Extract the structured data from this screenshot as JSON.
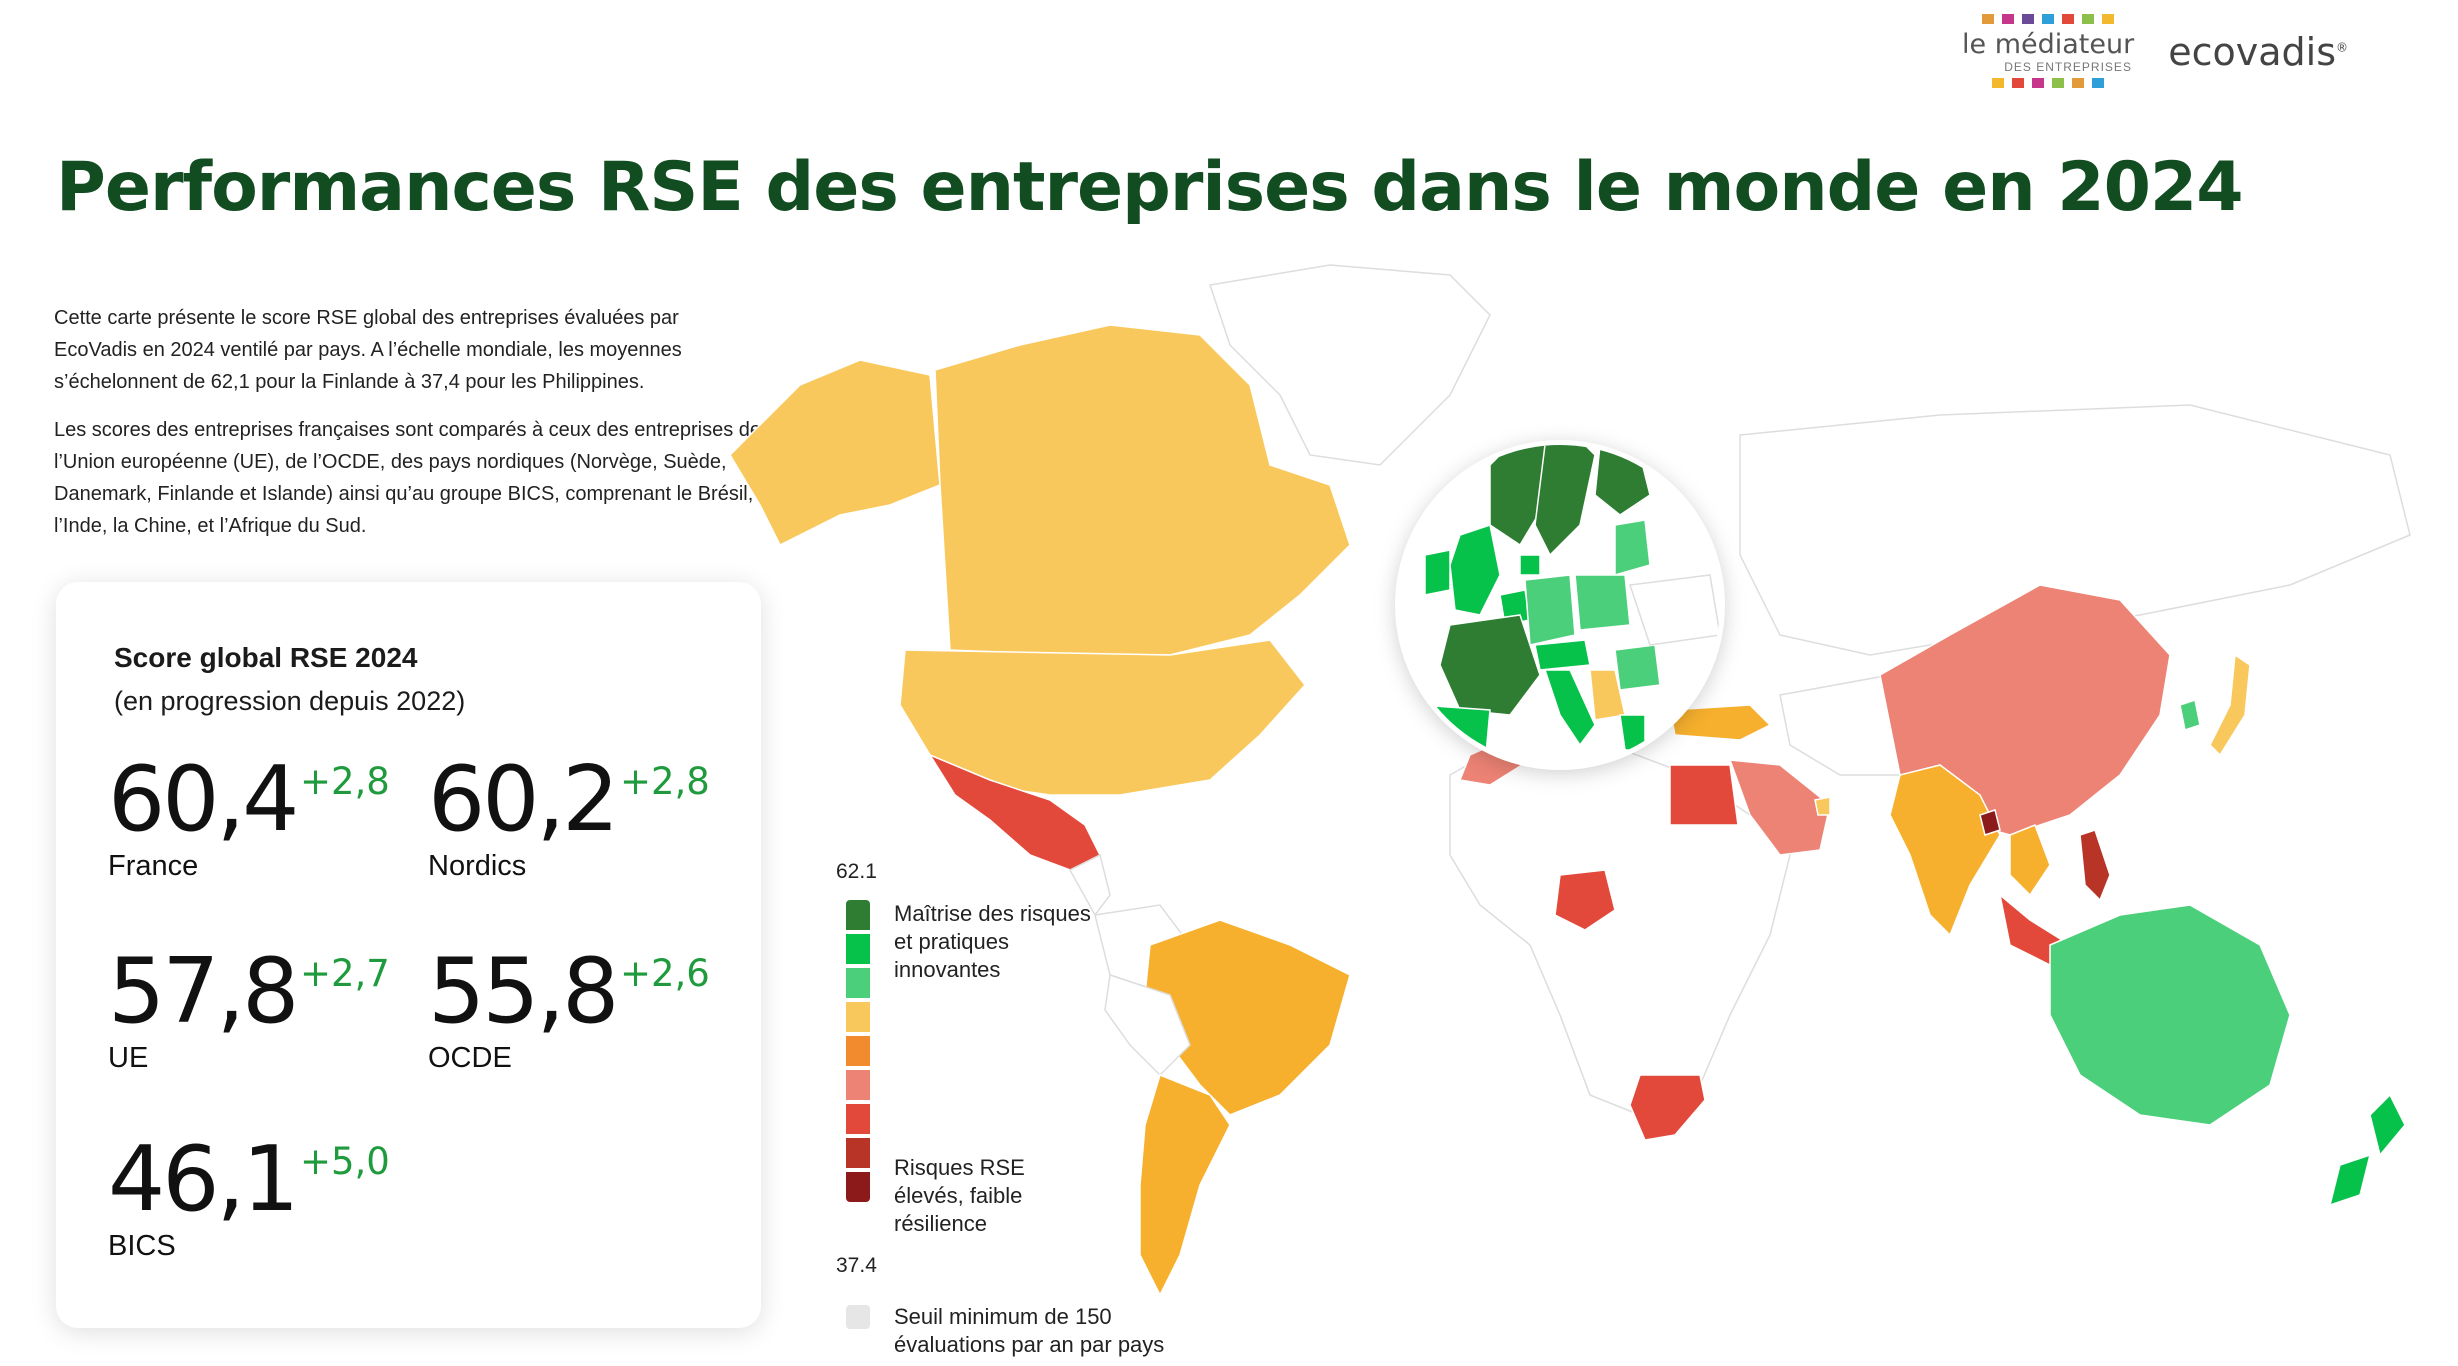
{
  "header": {
    "logo_mediateur": {
      "name": "le médiateur",
      "sub": "DES ENTREPRISES"
    },
    "logo_ecovadis": "ecovadis",
    "title": "Performances RSE des entreprises dans le monde en 2024"
  },
  "intro": {
    "p1": "Cette carte présente le score RSE global des entreprises évaluées par EcoVadis en 2024 ventilé par pays. A l’échelle mondiale, les moyennes s’échelonnent de 62,1 pour la Finlande à 37,4 pour les Philippines.",
    "p2": "Les scores des entreprises françaises sont comparés à ceux des entreprises de l’Union européenne (UE), de l’OCDE, des pays nordiques (Norvège, Suède, Danemark, Finlande et Islande) ainsi qu’au groupe BICS, comprenant le Brésil, l’Inde, la Chine, et l’Afrique du Sud."
  },
  "card": {
    "title": "Score global RSE 2024",
    "subtitle": "(en progression depuis 2022)",
    "stats": [
      {
        "value": "60,4",
        "delta": "+2,8",
        "label": "France"
      },
      {
        "value": "60,2",
        "delta": "+2,8",
        "label": "Nordics"
      },
      {
        "value": "57,8",
        "delta": "+2,7",
        "label": "UE"
      },
      {
        "value": "55,8",
        "delta": "+2,6",
        "label": "OCDE"
      },
      {
        "value": "46,1",
        "delta": "+5,0",
        "label": "BICS"
      }
    ]
  },
  "legend": {
    "max": "62.1",
    "min": "37.4",
    "top_label": "Maîtrise des risques et pratiques innovantes",
    "bottom_label": "Risques RSE élevés, faible résilience",
    "no_data_label": "Seuil minimum de 150 évaluations par an par pays",
    "colors": [
      "#2e7d32",
      "#06c14a",
      "#4ccf7b",
      "#f9c85c",
      "#f28a2e",
      "#ec8375",
      "#e2493a",
      "#b73426",
      "#8c1a1a"
    ]
  }
}
